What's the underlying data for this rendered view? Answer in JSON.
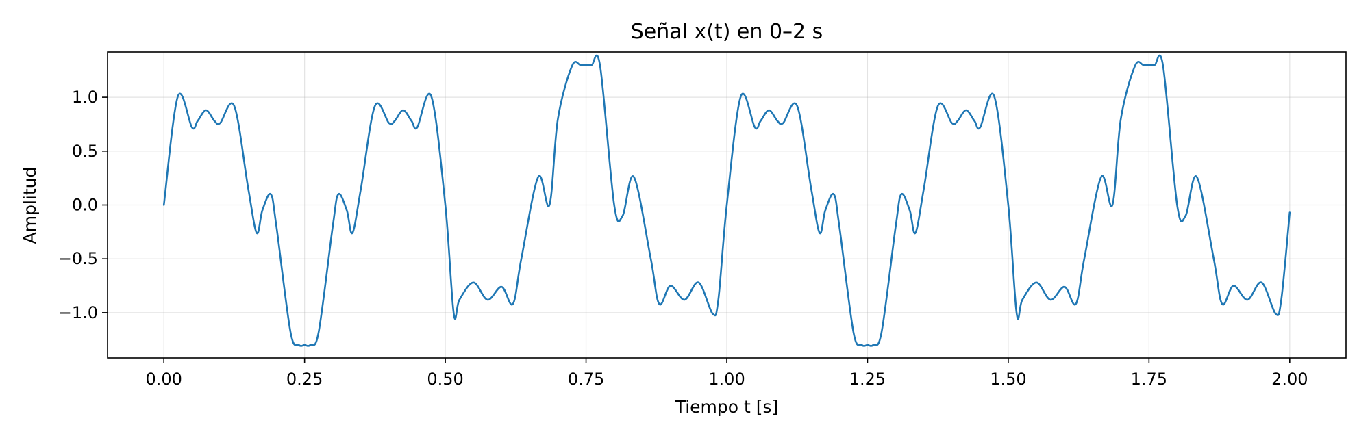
{
  "chart_data": {
    "type": "line",
    "title": "Señal x(t) en 0–2 s",
    "xlabel": "Tiempo t [s]",
    "ylabel": "Amplitud",
    "xlim": [
      -0.1,
      2.1
    ],
    "ylim": [
      -1.42,
      1.42
    ],
    "xticks": [
      0,
      0.25,
      0.5,
      0.75,
      1.0,
      1.25,
      1.5,
      1.75,
      2.0
    ],
    "xtick_labels": [
      "0.00",
      "0.25",
      "0.50",
      "0.75",
      "1.00",
      "1.25",
      "1.50",
      "1.75",
      "2.00"
    ],
    "yticks": [
      -1.0,
      -0.5,
      0.0,
      0.5,
      1.0
    ],
    "ytick_labels": [
      "−1.0",
      "−0.5",
      "0.0",
      "0.5",
      "1.0"
    ],
    "grid": true,
    "series": [
      {
        "color": "#1f77b4",
        "x": [
          0,
          0.025,
          0.05,
          0.06,
          0.075,
          0.09,
          0.1,
          0.125,
          0.15,
          0.165,
          0.175,
          0.19,
          0.2,
          0.225,
          0.24,
          0.25,
          0.26,
          0.275,
          0.3,
          0.31,
          0.325,
          0.335,
          0.35,
          0.375,
          0.4,
          0.41,
          0.425,
          0.44,
          0.45,
          0.475,
          0.5,
          0.515,
          0.525,
          0.55,
          0.575,
          0.6,
          0.62,
          0.635,
          0.665,
          0.685,
          0.7,
          0.725,
          0.74,
          0.75,
          0.76,
          0.775,
          0.8,
          0.815,
          0.835,
          0.865,
          0.88,
          0.9,
          0.925,
          0.95,
          0.975,
          0.985,
          1.0,
          1.025,
          1.05,
          1.06,
          1.075,
          1.09,
          1.1,
          1.125,
          1.15,
          1.165,
          1.175,
          1.19,
          1.2,
          1.225,
          1.24,
          1.25,
          1.26,
          1.275,
          1.3,
          1.31,
          1.325,
          1.335,
          1.35,
          1.375,
          1.4,
          1.41,
          1.425,
          1.44,
          1.45,
          1.475,
          1.5,
          1.515,
          1.525,
          1.55,
          1.575,
          1.6,
          1.62,
          1.635,
          1.665,
          1.685,
          1.7,
          1.725,
          1.74,
          1.75,
          1.76,
          1.775,
          1.8,
          1.815,
          1.835,
          1.865,
          1.88,
          1.9,
          1.925,
          1.95,
          1.975,
          1.985,
          2.0
        ],
        "y": [
          0,
          1.01,
          0.72,
          0.78,
          0.88,
          0.78,
          0.76,
          0.92,
          0.15,
          -0.26,
          -0.05,
          0.1,
          -0.2,
          -1.18,
          -1.3,
          -1.3,
          -1.3,
          -1.18,
          -0.2,
          0.1,
          -0.05,
          -0.26,
          0.15,
          0.92,
          0.76,
          0.78,
          0.88,
          0.78,
          0.72,
          1.01,
          0,
          -1.01,
          -0.88,
          -0.72,
          -0.88,
          -0.76,
          -0.92,
          -0.5,
          0.26,
          0.0,
          0.8,
          1.29,
          1.3,
          1.3,
          1.3,
          1.29,
          0.0,
          -0.1,
          0.26,
          -0.5,
          -0.92,
          -0.75,
          -0.88,
          -0.72,
          -1.01,
          -0.88,
          0,
          1.01,
          0.72,
          0.78,
          0.88,
          0.78,
          0.76,
          0.92,
          0.15,
          -0.26,
          -0.05,
          0.1,
          -0.2,
          -1.18,
          -1.3,
          -1.3,
          -1.3,
          -1.18,
          -0.2,
          0.1,
          -0.05,
          -0.26,
          0.15,
          0.92,
          0.76,
          0.78,
          0.88,
          0.78,
          0.72,
          1.01,
          0,
          -1.01,
          -0.88,
          -0.72,
          -0.88,
          -0.76,
          -0.92,
          -0.5,
          0.26,
          0.0,
          0.8,
          1.29,
          1.3,
          1.3,
          1.3,
          1.29,
          0.0,
          -0.1,
          0.26,
          -0.5,
          -0.92,
          -0.75,
          -0.88,
          -0.72,
          -1.01,
          -0.88,
          -0.07
        ]
      }
    ]
  }
}
